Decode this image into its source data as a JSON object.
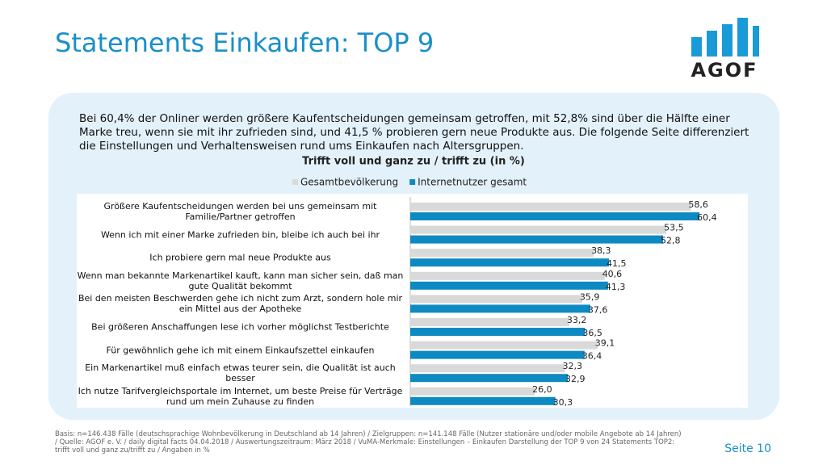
{
  "title": "Statements Einkaufen: TOP 9",
  "logo": "AGOF",
  "intro": "Bei 60,4% der Onliner werden größere Kaufentscheidungen gemeinsam getroffen, mit 52,8% sind über die Hälfte einer Marke treu, wenn sie mit ihr zufrieden sind, und 41,5 % probieren gern neue Produkte aus. Die folgende Seite differenziert die Einstellungen und Verhaltensweisen rund ums Einkaufen nach Altersgruppen.",
  "chart_data": {
    "type": "hbar",
    "title": "Trifft voll und ganz zu / trifft zu (in %)",
    "categories": [
      "Größere Kaufentscheidungen werden bei uns gemeinsam mit Familie/Partner getroffen",
      "Wenn ich mit einer Marke zufrieden bin, bleibe ich auch bei ihr",
      "Ich probiere gern mal neue Produkte aus",
      "Wenn man bekannte Markenartikel kauft, kann man sicher sein, daß man gute Qualität bekommt",
      "Bei den meisten Beschwerden gehe ich nicht zum Arzt, sondern hole mir ein Mittel aus der Apotheke",
      "Bei größeren Anschaffungen lese ich vorher möglichst Testberichte",
      "Für gewöhnlich gehe ich mit einem Einkaufszettel einkaufen",
      "Ein Markenartikel muß einfach etwas teurer sein, die Qualität ist auch besser",
      "Ich nutze Tarifvergleichsportale im Internet, um beste Preise für Verträge rund um mein Zuhause zu finden"
    ],
    "series": [
      {
        "name": "Gesamtbevölkerung",
        "color": "#d9d9d9",
        "values": [
          58.6,
          53.5,
          38.3,
          40.6,
          35.9,
          33.2,
          39.1,
          32.3,
          26.0
        ],
        "value_labels": [
          "58,6",
          "53,5",
          "38,3",
          "40,6",
          "35,9",
          "33,2",
          "39,1",
          "32,3",
          "26,0"
        ]
      },
      {
        "name": "Internetnutzer gesamt",
        "color": "#0e8ac2",
        "values": [
          60.4,
          52.8,
          41.5,
          41.3,
          37.6,
          36.5,
          36.4,
          32.9,
          30.3
        ],
        "value_labels": [
          "60,4",
          "52,8",
          "41,5",
          "41,3",
          "37,6",
          "36,5",
          "36,4",
          "32,9",
          "30,3"
        ]
      }
    ],
    "xlim": [
      0,
      70
    ]
  },
  "footer": "Basis: n=146.438 Fälle (deutschsprachige Wohnbevölkerung in Deutschland ab 14 Jahren) / Zielgruppen: n=141.148 Fälle (Nutzer stationäre und/oder mobile Angebote ab 14 Jahren) / Quelle: AGOF e. V. / daily digital facts 04.04.2018 / Auswertungszeitraum: März 2018 / VuMA-Merkmale: Einstellungen – Einkaufen  Darstellung der TOP 9 von 24 Statements TOP2: trifft voll und ganz zu/trifft zu / Angaben in %",
  "page": "Seite 10"
}
